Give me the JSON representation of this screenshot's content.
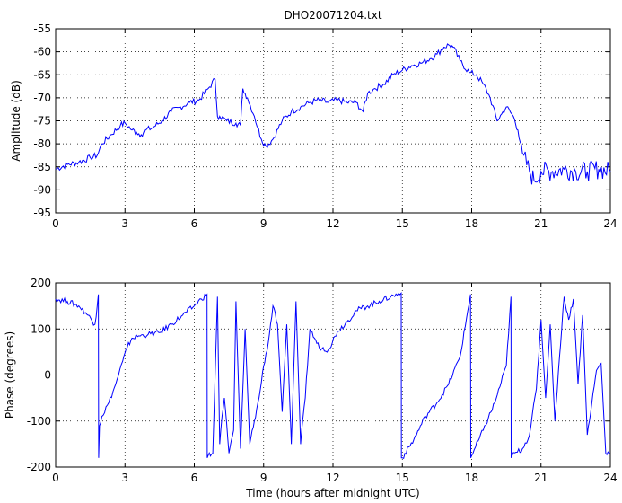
{
  "chart_data": [
    {
      "type": "line",
      "title": "DHO20071204.txt",
      "xlabel": "",
      "ylabel": "Amplitude (dB)",
      "xlim": [
        0,
        24
      ],
      "ylim": [
        -95,
        -55
      ],
      "xticks": [
        0,
        3,
        6,
        9,
        12,
        15,
        18,
        21,
        24
      ],
      "yticks": [
        -95,
        -90,
        -85,
        -80,
        -75,
        -70,
        -65,
        -60,
        -55
      ],
      "grid": true,
      "color": "#0000ff",
      "series": [
        {
          "x": [
            0,
            0.5,
            1,
            1.5,
            1.8,
            2,
            2.4,
            2.8,
            3.0,
            3.3,
            3.5,
            3.7,
            3.9,
            4.2,
            4.6,
            5.0,
            5.4,
            5.8,
            6.2,
            6.6,
            6.9,
            7.0,
            7.1,
            7.4,
            7.8,
            8.0,
            8.1,
            8.3,
            8.6,
            8.9,
            9.1,
            9.4,
            9.8,
            10.2,
            10.6,
            11.0,
            11.4,
            11.8,
            12.2,
            12.6,
            13.0,
            13.3,
            13.5,
            13.8,
            14.2,
            14.6,
            15.0,
            15.4,
            15.8,
            16.2,
            16.5,
            16.8,
            17.0,
            17.2,
            17.5,
            17.9,
            18.2,
            18.5,
            18.8,
            19.1,
            19.3,
            19.5,
            19.8,
            20.0,
            20.2,
            20.5,
            20.7,
            21.0,
            21.5,
            22,
            22.5,
            23,
            23.5,
            24
          ],
          "y": [
            -85.5,
            -84.5,
            -84,
            -83,
            -82.5,
            -80,
            -78,
            -76,
            -75.5,
            -77,
            -77.5,
            -78,
            -77,
            -76.5,
            -75,
            -73,
            -72,
            -71,
            -70.5,
            -68,
            -66,
            -74,
            -74,
            -75,
            -75.5,
            -76,
            -68,
            -70,
            -74,
            -79,
            -80.5,
            -79,
            -75,
            -73,
            -72,
            -71,
            -70.5,
            -71,
            -70.5,
            -71,
            -71,
            -73,
            -69,
            -68,
            -67,
            -65,
            -64,
            -63,
            -62.5,
            -61.5,
            -60.5,
            -59,
            -58.5,
            -59,
            -62,
            -64.5,
            -65,
            -67,
            -70,
            -75,
            -73.5,
            -72,
            -74,
            -77,
            -82,
            -86,
            -88,
            -86,
            -86,
            -85.5,
            -86,
            -86,
            -85.5,
            -86
          ]
        }
      ]
    },
    {
      "type": "line",
      "title": "",
      "xlabel": "Time (hours after midnight UTC)",
      "ylabel": "Phase (degrees)",
      "xlim": [
        0,
        24
      ],
      "ylim": [
        -200,
        200
      ],
      "xticks": [
        0,
        3,
        6,
        9,
        12,
        15,
        18,
        21,
        24
      ],
      "yticks": [
        -200,
        -100,
        0,
        100,
        200
      ],
      "grid": true,
      "color": "#0000ff",
      "series": [
        {
          "x": [
            0,
            0.5,
            1.0,
            1.4,
            1.7,
            1.85,
            1.86,
            1.9,
            2.0,
            2.3,
            2.6,
            2.9,
            3.1,
            3.3,
            3.6,
            4.0,
            4.5,
            5.0,
            5.5,
            6.0,
            6.3,
            6.55,
            6.56,
            6.6,
            6.8,
            7.0,
            7.1,
            7.2,
            7.3,
            7.5,
            7.7,
            7.8,
            8.0,
            8.2,
            8.4,
            8.6,
            8.8,
            9.0,
            9.2,
            9.4,
            9.6,
            9.8,
            10.0,
            10.2,
            10.4,
            10.6,
            10.8,
            11.0,
            11.2,
            11.4,
            11.8,
            12.2,
            12.6,
            13.0,
            13.5,
            14.0,
            14.5,
            14.95,
            14.96,
            15.0,
            15.5,
            16.0,
            16.5,
            17.0,
            17.5,
            17.95,
            17.96,
            18.0,
            18.5,
            19.0,
            19.5,
            19.7,
            19.71,
            19.75,
            20.2,
            20.5,
            20.8,
            21.0,
            21.2,
            21.4,
            21.6,
            21.8,
            22.0,
            22.2,
            22.4,
            22.6,
            22.8,
            23.0,
            23.2,
            23.4,
            23.6,
            23.8,
            24.0
          ],
          "y": [
            165,
            160,
            150,
            130,
            110,
            175,
            -180,
            -110,
            -90,
            -60,
            -20,
            30,
            60,
            80,
            85,
            88,
            92,
            110,
            130,
            150,
            165,
            175,
            -180,
            -175,
            -170,
            170,
            -150,
            -90,
            -50,
            -170,
            -120,
            160,
            -160,
            100,
            -150,
            -100,
            -50,
            20,
            70,
            150,
            110,
            -80,
            110,
            -150,
            160,
            -150,
            -50,
            100,
            80,
            60,
            55,
            95,
            115,
            140,
            150,
            160,
            170,
            178,
            -180,
            -180,
            -140,
            -90,
            -60,
            -20,
            40,
            175,
            -180,
            -175,
            -120,
            -60,
            20,
            170,
            -180,
            -175,
            -160,
            -130,
            -30,
            120,
            -50,
            110,
            -100,
            40,
            170,
            120,
            165,
            -20,
            130,
            -130,
            -60,
            10,
            25,
            -170,
            -170
          ]
        }
      ]
    }
  ]
}
